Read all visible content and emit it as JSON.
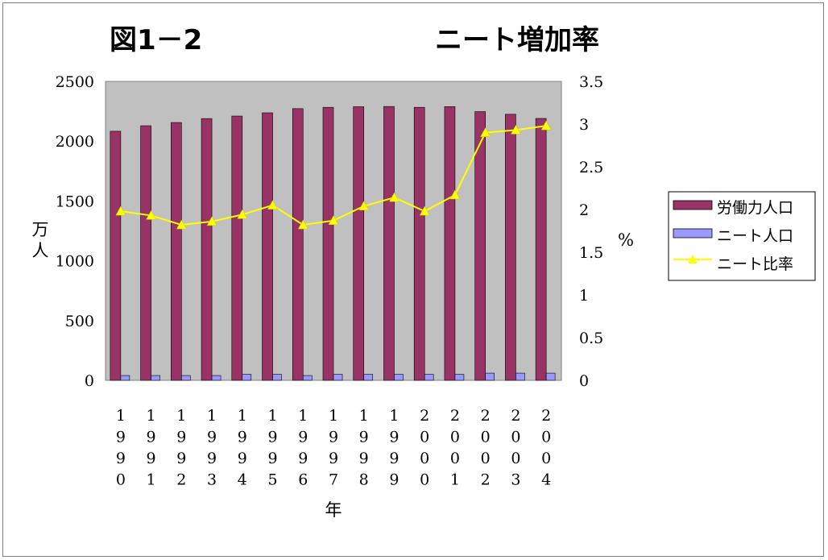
{
  "title_left": "図1－2",
  "title_right": "ニート増加率",
  "chart_data": {
    "type": "bar",
    "categories": [
      "1990",
      "1991",
      "1992",
      "1993",
      "1994",
      "1995",
      "1996",
      "1997",
      "1998",
      "1999",
      "2000",
      "2001",
      "2002",
      "2003",
      "2004"
    ],
    "xlabel": "年",
    "ylabel": "万人",
    "ylabel_right": "%",
    "ylim": [
      0,
      2500
    ],
    "yticks": [
      "0",
      "500",
      "1000",
      "1500",
      "2000",
      "2500"
    ],
    "ylim_right": [
      0,
      3.5
    ],
    "yticks_right": [
      "0",
      "0.5",
      "1",
      "1.5",
      "2",
      "2.5",
      "3",
      "3.5"
    ],
    "grid": false,
    "plot_background": "#c0c0c0",
    "legend_position": "right",
    "series": [
      {
        "name": "労働力人口",
        "type": "bar",
        "axis": "left",
        "color": "#993366",
        "values": [
          2083,
          2129,
          2156,
          2189,
          2210,
          2237,
          2272,
          2283,
          2288,
          2290,
          2283,
          2289,
          2247,
          2225,
          2190
        ]
      },
      {
        "name": "ニート人口",
        "type": "bar",
        "axis": "left",
        "color": "#9999ff",
        "values": [
          40,
          40,
          40,
          40,
          50,
          50,
          40,
          50,
          50,
          50,
          50,
          50,
          60,
          60,
          60
        ]
      },
      {
        "name": "ニート比率",
        "type": "line",
        "axis": "right",
        "color": "#ffff00",
        "marker": "triangle",
        "values": [
          1.98,
          1.93,
          1.82,
          1.86,
          1.94,
          2.05,
          1.82,
          1.87,
          2.04,
          2.14,
          1.98,
          2.17,
          2.9,
          2.93,
          2.98
        ]
      }
    ]
  }
}
